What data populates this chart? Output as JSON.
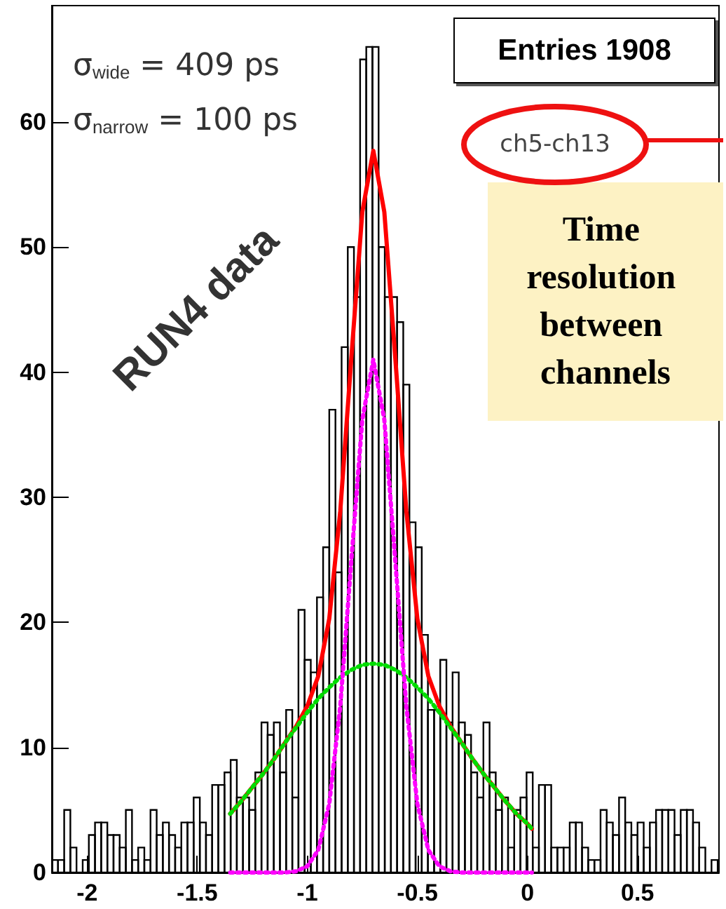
{
  "chart_data": {
    "type": "histogram",
    "xlim": [
      -2.16,
      0.87
    ],
    "xticks": [
      -2,
      -1.5,
      -1,
      -0.5,
      0,
      0.5
    ],
    "ylim": [
      0,
      69.3
    ],
    "yticks": [
      0,
      10,
      20,
      30,
      40,
      50,
      60
    ],
    "grid": false,
    "annotations": [
      "σ$_{wide}$ = 409 ps",
      "σ$_{narrow}$ = 100 ps",
      "RUN4 data",
      "Entries 1908",
      "ch5-ch13",
      "Time resolution between channels"
    ],
    "series": [
      {
        "color": "#000000",
        "bins": [
          -2.16,
          -2.132,
          -2.104,
          -2.076,
          -2.048,
          -2.02,
          -1.992,
          -1.964,
          -1.936,
          -1.908,
          -1.88,
          -1.852,
          -1.824,
          -1.796,
          -1.768,
          -1.74,
          -1.712,
          -1.684,
          -1.656,
          -1.628,
          -1.6,
          -1.572,
          -1.544,
          -1.516,
          -1.488,
          -1.46,
          -1.432,
          -1.404,
          -1.376,
          -1.348,
          -1.32,
          -1.292,
          -1.264,
          -1.236,
          -1.208,
          -1.18,
          -1.152,
          -1.124,
          -1.096,
          -1.068,
          -1.04,
          -1.012,
          -0.984,
          -0.956,
          -0.928,
          -0.9,
          -0.872,
          -0.844,
          -0.816,
          -0.788,
          -0.76,
          -0.732,
          -0.704,
          -0.676,
          -0.648,
          -0.62,
          -0.592,
          -0.564,
          -0.536,
          -0.508,
          -0.48,
          -0.452,
          -0.424,
          -0.396,
          -0.368,
          -0.34,
          -0.312,
          -0.284,
          -0.256,
          -0.228,
          -0.2,
          -0.172,
          -0.144,
          -0.116,
          -0.088,
          -0.06,
          -0.032,
          -0.004,
          0.024,
          0.052,
          0.08,
          0.108,
          0.136,
          0.164,
          0.192,
          0.22,
          0.248,
          0.276,
          0.304,
          0.332,
          0.36,
          0.388,
          0.416,
          0.444,
          0.472,
          0.5,
          0.528,
          0.556,
          0.584,
          0.612,
          0.64,
          0.668,
          0.696,
          0.724,
          0.752,
          0.78,
          0.808,
          0.836,
          0.864
        ],
        "values": [
          1,
          1,
          5,
          2,
          0,
          1,
          3,
          4,
          4,
          3,
          3,
          2,
          5,
          1,
          2,
          1,
          5,
          3,
          4,
          3,
          2,
          4,
          4,
          6,
          4,
          3,
          7,
          7,
          8,
          9,
          6,
          6,
          5,
          8,
          12,
          11,
          12,
          8,
          13,
          6,
          21,
          17,
          16,
          22,
          26,
          37,
          24,
          42,
          50,
          46,
          65,
          66,
          66,
          50,
          46,
          46,
          44,
          39,
          28,
          26,
          19,
          13,
          13,
          17,
          12,
          16,
          12,
          11,
          8,
          6,
          12,
          8,
          5,
          6,
          2,
          5,
          6,
          8,
          2,
          7,
          7,
          2,
          2,
          2,
          4,
          4,
          2,
          1,
          1,
          5,
          4,
          3,
          6,
          4,
          3,
          4,
          2,
          4,
          5,
          5,
          5,
          3,
          5,
          5,
          4,
          2,
          0,
          1
        ]
      },
      {
        "type": "line",
        "color": "#00dd00",
        "line_style": "dotted",
        "x": [
          -1.35,
          -1.3,
          -1.25,
          -1.2,
          -1.15,
          -1.1,
          -1.05,
          -1.0,
          -0.95,
          -0.9,
          -0.85,
          -0.8,
          -0.75,
          -0.7,
          -0.65,
          -0.6,
          -0.55,
          -0.5,
          -0.45,
          -0.4,
          -0.35,
          -0.3,
          -0.25,
          -0.2,
          -0.15,
          -0.1,
          -0.05,
          0,
          0.02
        ],
        "values": [
          4.7,
          5.7,
          6.8,
          7.9,
          9.1,
          10.4,
          11.6,
          12.8,
          13.9,
          14.8,
          15.6,
          16.2,
          16.6,
          16.7,
          16.6,
          16.2,
          15.6,
          14.8,
          13.9,
          12.8,
          11.6,
          10.4,
          9.1,
          7.9,
          6.8,
          5.7,
          4.7,
          3.9,
          3.5
        ]
      },
      {
        "type": "line",
        "color": "#ff00ff",
        "line_style": "dotted",
        "x": [
          -1.35,
          -1.3,
          -1.25,
          -1.2,
          -1.15,
          -1.1,
          -1.05,
          -1.0,
          -0.95,
          -0.9,
          -0.85,
          -0.8,
          -0.75,
          -0.7,
          -0.65,
          -0.6,
          -0.55,
          -0.5,
          -0.45,
          -0.4,
          -0.35,
          -0.3,
          -0.25,
          -0.2,
          -0.15,
          -0.1,
          -0.05,
          0,
          0.02
        ],
        "values": [
          0,
          0,
          0,
          0,
          0,
          0,
          0.1,
          0.5,
          1.8,
          5.5,
          13.3,
          24.9,
          36.2,
          41,
          36.2,
          24.9,
          13.3,
          5.5,
          1.8,
          0.5,
          0.1,
          0,
          0,
          0,
          0,
          0,
          0,
          0,
          0
        ]
      },
      {
        "type": "line",
        "color": "#ff0000",
        "line_style": "solid",
        "x": [
          -1.35,
          -1.3,
          -1.25,
          -1.2,
          -1.15,
          -1.1,
          -1.05,
          -1.0,
          -0.95,
          -0.9,
          -0.85,
          -0.8,
          -0.75,
          -0.7,
          -0.65,
          -0.6,
          -0.55,
          -0.5,
          -0.45,
          -0.4,
          -0.35,
          -0.3,
          -0.25,
          -0.2,
          -0.15,
          -0.1,
          -0.05,
          0,
          0.02
        ],
        "values": [
          4.7,
          5.7,
          6.8,
          7.9,
          9.1,
          10.4,
          11.7,
          13.3,
          15.7,
          20.3,
          28.9,
          41.1,
          52.8,
          57.7,
          52.8,
          41.1,
          28.9,
          20.3,
          15.7,
          13.3,
          11.7,
          10.4,
          9.1,
          7.9,
          6.8,
          5.7,
          4.7,
          3.9,
          3.5
        ]
      }
    ]
  }
}
